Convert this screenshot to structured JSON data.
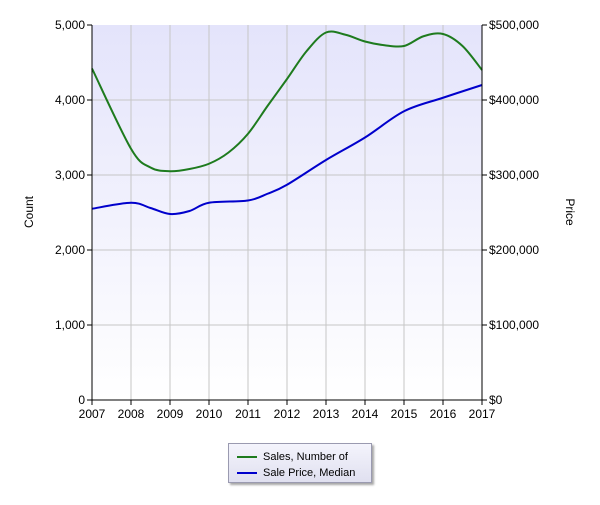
{
  "chart_data": {
    "type": "line",
    "x": [
      "2007",
      "2008",
      "2009",
      "2010",
      "2011",
      "2012",
      "2013",
      "2014",
      "2015",
      "2016",
      "2017"
    ],
    "y_left_ticks": [
      "0",
      "1,000",
      "2,000",
      "3,000",
      "4,000",
      "5,000"
    ],
    "y_right_ticks": [
      "$0",
      "$100,000",
      "$200,000",
      "$300,000",
      "$400,000",
      "$500,000"
    ],
    "ylabel_left": "Count",
    "ylabel_right": "Price",
    "ylim_left": [
      0,
      5000
    ],
    "ylim_right": [
      0,
      500000
    ],
    "grid": true,
    "legend_position": "bottom",
    "series": [
      {
        "name": "Sales, Number of",
        "axis": "left",
        "color": "#1e7b1e",
        "points": [
          [
            2007,
            4420
          ],
          [
            2008,
            3350
          ],
          [
            2008.5,
            3100
          ],
          [
            2009,
            3050
          ],
          [
            2009.5,
            3080
          ],
          [
            2010,
            3150
          ],
          [
            2010.5,
            3300
          ],
          [
            2011,
            3550
          ],
          [
            2011.5,
            3920
          ],
          [
            2012,
            4280
          ],
          [
            2012.5,
            4650
          ],
          [
            2013,
            4900
          ],
          [
            2013.5,
            4870
          ],
          [
            2014,
            4780
          ],
          [
            2014.5,
            4730
          ],
          [
            2015,
            4720
          ],
          [
            2015.5,
            4850
          ],
          [
            2016,
            4880
          ],
          [
            2016.5,
            4720
          ],
          [
            2017,
            4400
          ]
        ]
      },
      {
        "name": "Sale Price, Median",
        "axis": "right",
        "color": "#0000cc",
        "points": [
          [
            2007,
            255000
          ],
          [
            2008,
            263000
          ],
          [
            2008.5,
            256000
          ],
          [
            2009,
            248000
          ],
          [
            2009.5,
            252000
          ],
          [
            2010,
            263000
          ],
          [
            2011,
            266000
          ],
          [
            2011.5,
            275000
          ],
          [
            2012,
            287000
          ],
          [
            2013,
            320000
          ],
          [
            2014,
            350000
          ],
          [
            2015,
            385000
          ],
          [
            2016,
            403000
          ],
          [
            2017,
            420000
          ]
        ]
      }
    ]
  }
}
